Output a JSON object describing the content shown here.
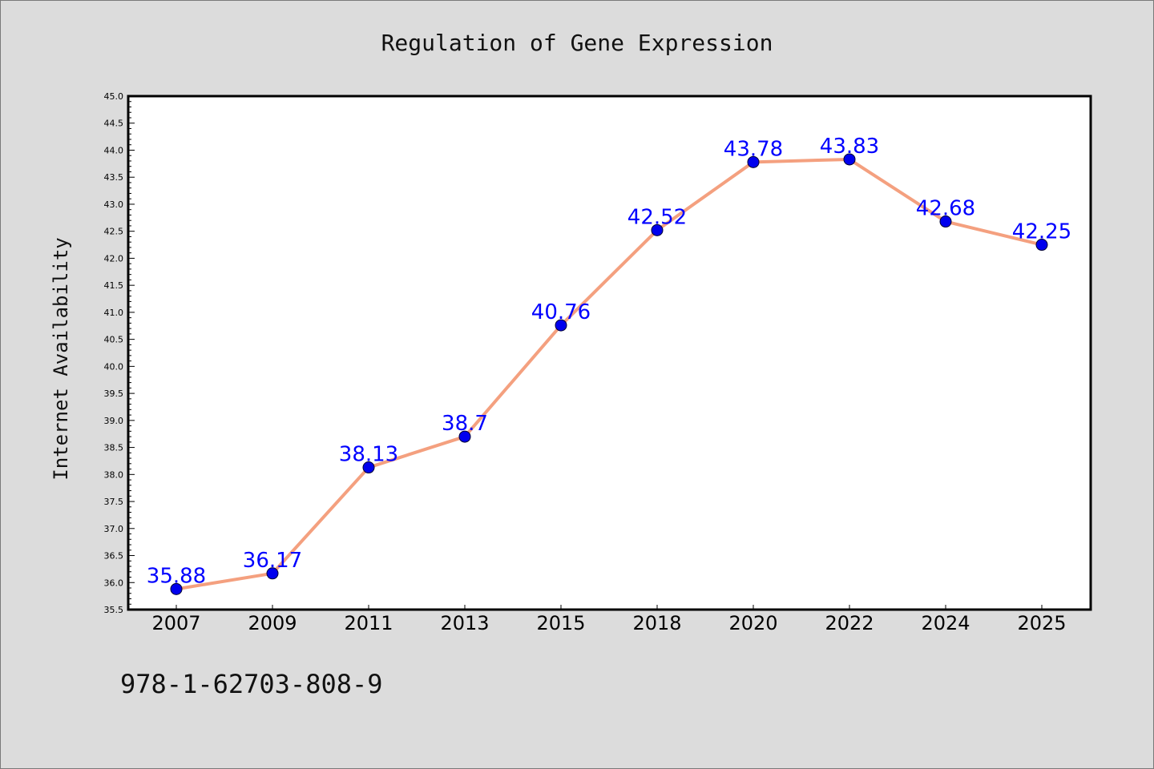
{
  "chart_data": {
    "type": "line",
    "title": "Regulation of Gene Expression",
    "xlabel": "",
    "ylabel": "Internet Availability",
    "categories": [
      "2007",
      "2009",
      "2011",
      "2013",
      "2015",
      "2018",
      "2020",
      "2022",
      "2024",
      "2025"
    ],
    "series": [
      {
        "values": [
          35.88,
          36.17,
          38.13,
          38.7,
          40.76,
          42.52,
          43.78,
          43.83,
          42.68,
          42.25
        ],
        "labels": [
          "35.88",
          "36.17",
          "38.13",
          "38.7",
          "40.76",
          "42.52",
          "43.78",
          "43.83",
          "42.68",
          "42.25"
        ],
        "line_color": "#f4a07f",
        "marker_color": "#0000ee",
        "label_color": "#0000ff"
      }
    ],
    "ylim": [
      35.5,
      45.0
    ],
    "yticks": [
      "35.5",
      "36.0",
      "36.5",
      "37.0",
      "37.5",
      "38.0",
      "38.5",
      "39.0",
      "39.5",
      "40.0",
      "40.5",
      "41.0",
      "41.5",
      "42.0",
      "42.5",
      "43.0",
      "43.5",
      "44.0",
      "44.5",
      "45.0"
    ],
    "grid": false,
    "legend": "none"
  },
  "footer": {
    "isbn": "978-1-62703-808-9"
  },
  "colors": {
    "background": "#dcdcdc",
    "plot_background": "#ffffff"
  }
}
